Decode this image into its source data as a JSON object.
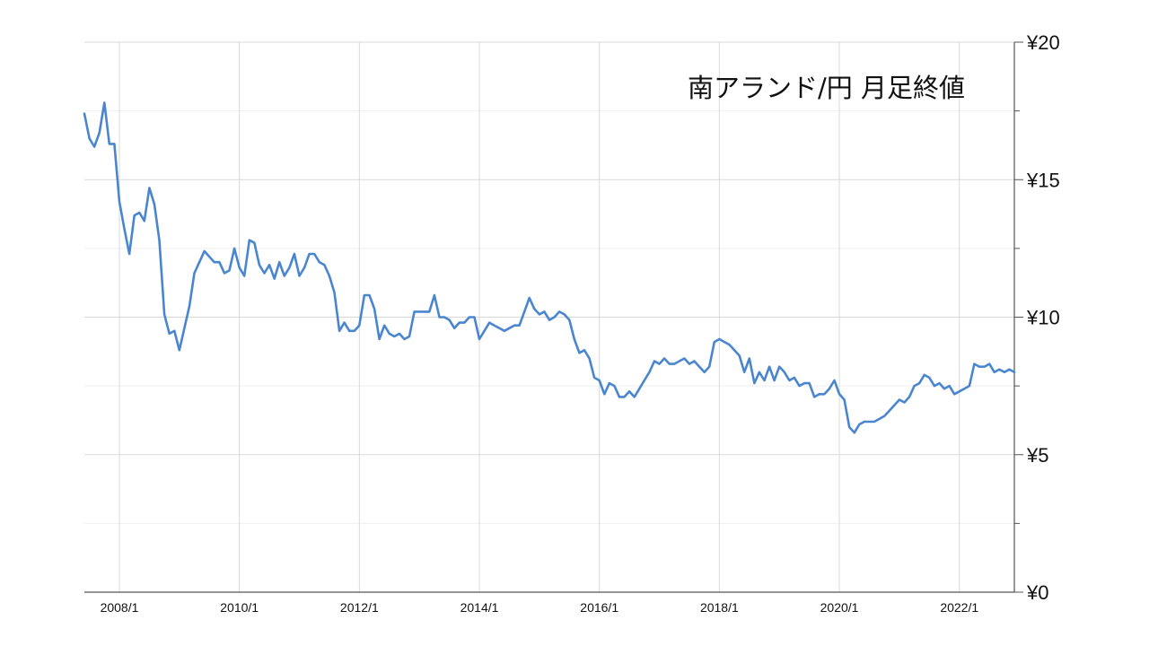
{
  "chart_data": {
    "type": "line",
    "title": "南アランド/円 月足終値",
    "xlabel": "",
    "ylabel": "",
    "x_start": "2007/6",
    "x_end": "2022/12",
    "x_ticks": [
      "2008/1",
      "2010/1",
      "2012/1",
      "2014/1",
      "2016/1",
      "2018/1",
      "2020/1",
      "2022/1"
    ],
    "y_ticks": [
      "¥0",
      "¥5",
      "¥10",
      "¥15",
      "¥20"
    ],
    "ylim": [
      0,
      20
    ],
    "y_axis_position": "right",
    "grid": true,
    "legend": "none",
    "series": [
      {
        "color": "#4a86cf",
        "values": [
          17.4,
          16.5,
          16.2,
          16.7,
          17.8,
          16.3,
          16.3,
          14.2,
          13.2,
          12.3,
          13.7,
          13.8,
          13.5,
          14.7,
          14.1,
          12.8,
          10.1,
          9.4,
          9.5,
          8.8,
          9.6,
          10.4,
          11.6,
          12.0,
          12.4,
          12.2,
          12.0,
          12.0,
          11.6,
          11.7,
          12.5,
          11.8,
          11.5,
          12.8,
          12.7,
          11.9,
          11.6,
          11.9,
          11.4,
          12.0,
          11.5,
          11.8,
          12.3,
          11.5,
          11.8,
          12.3,
          12.3,
          12.0,
          11.9,
          11.5,
          10.9,
          9.5,
          9.8,
          9.5,
          9.5,
          9.7,
          10.8,
          10.8,
          10.3,
          9.2,
          9.7,
          9.4,
          9.3,
          9.4,
          9.2,
          9.3,
          10.2,
          10.2,
          10.2,
          10.2,
          10.8,
          10.0,
          10.0,
          9.9,
          9.6,
          9.8,
          9.8,
          10.0,
          10.0,
          9.2,
          9.5,
          9.8,
          9.7,
          9.6,
          9.5,
          9.6,
          9.7,
          9.7,
          10.2,
          10.7,
          10.3,
          10.1,
          10.2,
          9.9,
          10.0,
          10.2,
          10.1,
          9.9,
          9.2,
          8.7,
          8.8,
          8.5,
          7.8,
          7.7,
          7.2,
          7.6,
          7.5,
          7.1,
          7.1,
          7.3,
          7.1,
          7.4,
          7.7,
          8.0,
          8.4,
          8.3,
          8.5,
          8.3,
          8.3,
          8.4,
          8.5,
          8.3,
          8.4,
          8.2,
          8.0,
          8.2,
          9.1,
          9.2,
          9.1,
          9.0,
          8.8,
          8.6,
          8.0,
          8.5,
          7.6,
          8.0,
          7.7,
          8.2,
          7.7,
          8.2,
          8.0,
          7.7,
          7.8,
          7.5,
          7.6,
          7.6,
          7.1,
          7.2,
          7.2,
          7.4,
          7.7,
          7.2,
          7.0,
          6.0,
          5.8,
          6.1,
          6.2,
          6.2,
          6.2,
          6.3,
          6.4,
          6.6,
          6.8,
          7.0,
          6.9,
          7.1,
          7.5,
          7.6,
          7.9,
          7.8,
          7.5,
          7.6,
          7.4,
          7.5,
          7.2,
          7.3,
          7.4,
          7.5,
          8.3,
          8.2,
          8.2,
          8.3,
          8.0,
          8.1,
          8.0,
          8.1,
          8.0
        ]
      }
    ]
  }
}
